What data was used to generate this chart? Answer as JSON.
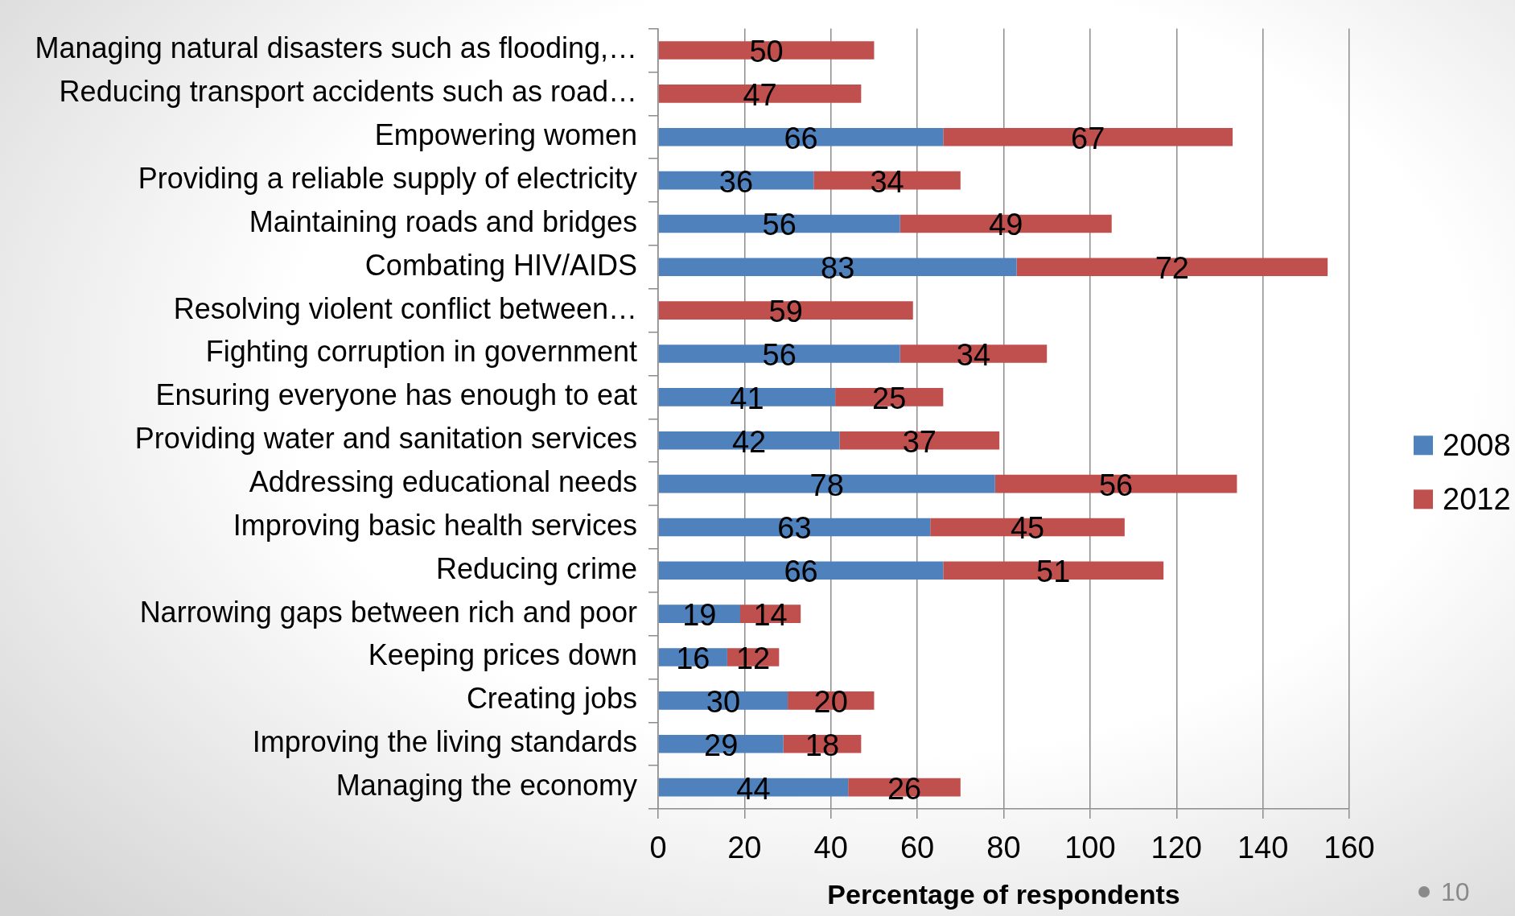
{
  "chart_data": {
    "type": "bar",
    "orientation": "horizontal",
    "stacked": true,
    "xlabel": "Percentage of respondents",
    "categories": [
      "Managing natural disasters such as flooding,…",
      "Reducing transport accidents such as road…",
      "Empowering women",
      "Providing a reliable supply of electricity",
      "Maintaining roads and bridges",
      "Combating HIV/AIDS",
      "Resolving violent conflict between…",
      "Fighting corruption in government",
      "Ensuring everyone has enough to eat",
      "Providing water and sanitation services",
      "Addressing educational needs",
      "Improving basic health services",
      "Reducing crime",
      "Narrowing gaps between rich and poor",
      "Keeping prices down",
      "Creating jobs",
      "Improving the living standards",
      "Managing the economy"
    ],
    "series": [
      {
        "name": "2008",
        "color": "#4f81bd",
        "values": [
          null,
          null,
          66,
          36,
          56,
          83,
          null,
          56,
          41,
          42,
          78,
          63,
          66,
          19,
          16,
          30,
          29,
          44
        ]
      },
      {
        "name": "2012",
        "color": "#c0504d",
        "values": [
          50,
          47,
          67,
          34,
          49,
          72,
          59,
          34,
          25,
          37,
          56,
          45,
          51,
          14,
          12,
          20,
          18,
          26
        ]
      }
    ],
    "xlim": [
      0,
      160
    ],
    "xticks": [
      0,
      20,
      40,
      60,
      80,
      100,
      120,
      140,
      160
    ],
    "grid": "x",
    "legend": "right",
    "data_labels": true,
    "annotations": [
      "10"
    ]
  }
}
